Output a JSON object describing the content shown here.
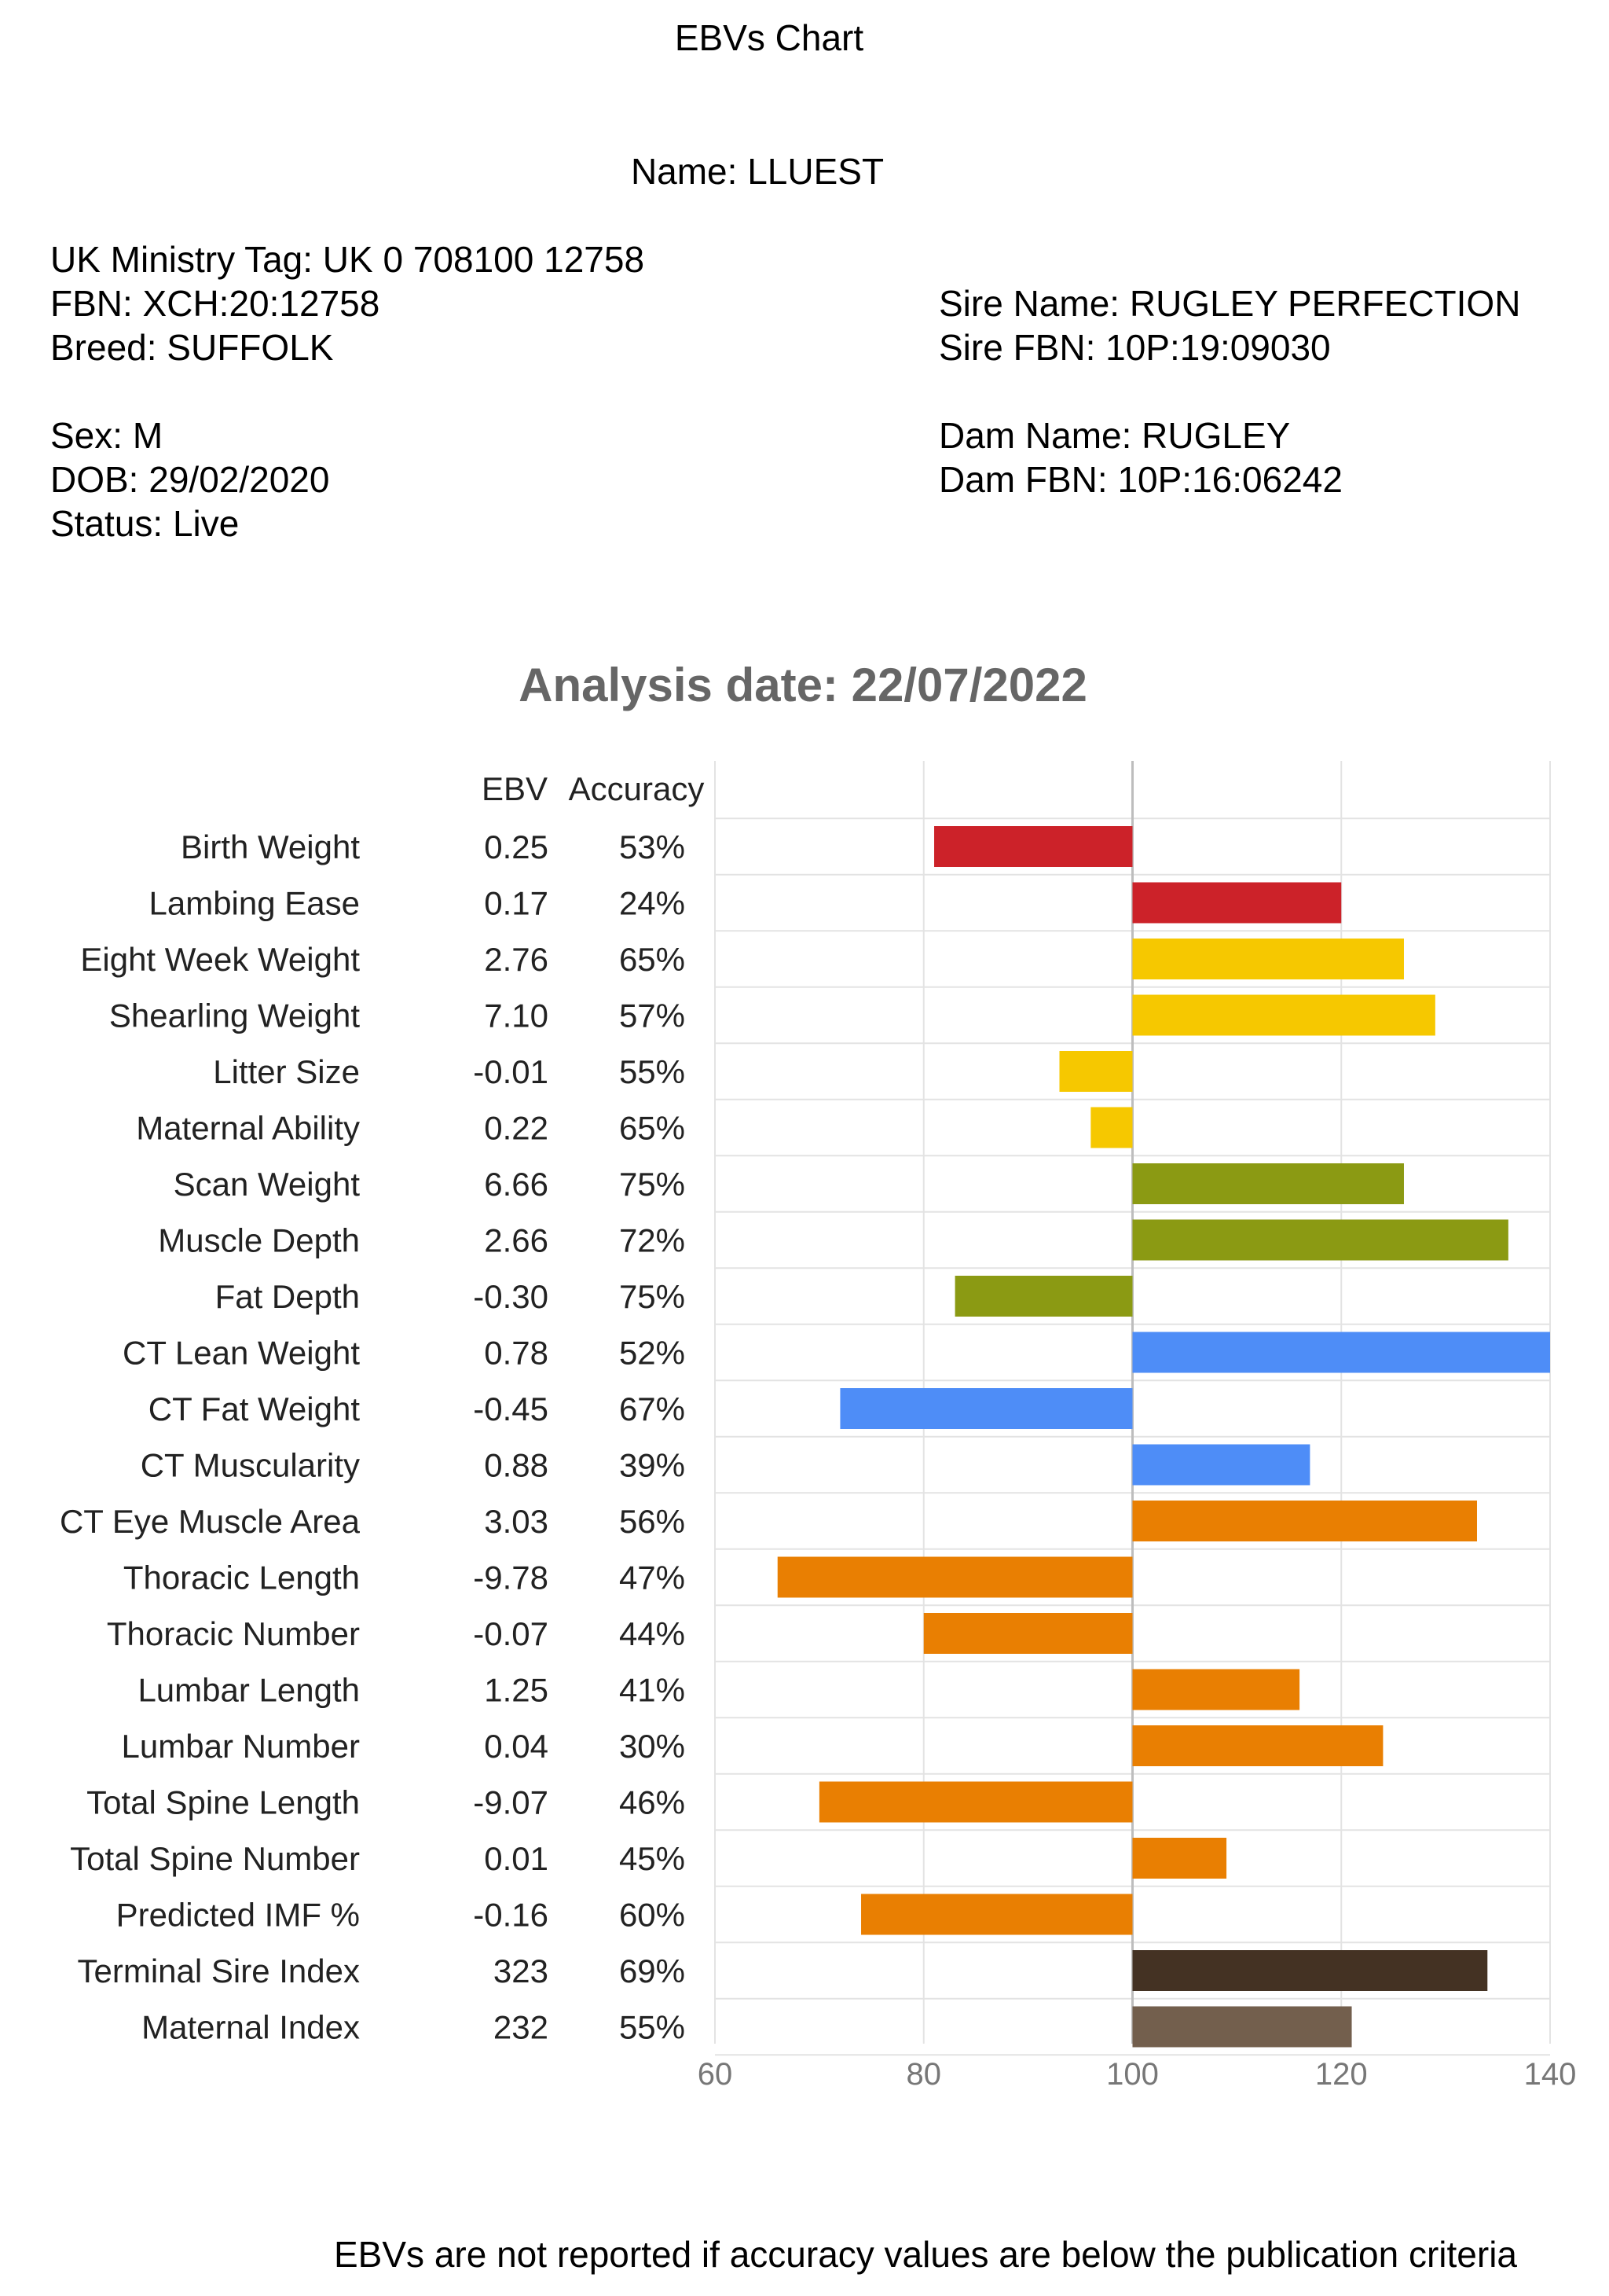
{
  "header": {
    "doc_title": "EBVs Chart",
    "name": "Name: LLUEST",
    "ministry_tag": "UK Ministry Tag: UK 0 708100 12758",
    "fbn": "FBN: XCH:20:12758",
    "breed": "Breed: SUFFOLK",
    "sex": "Sex: M",
    "dob": "DOB: 29/02/2020",
    "status": "Status: Live",
    "sire_name": "Sire Name: RUGLEY PERFECTION",
    "sire_fbn": "Sire FBN: 10P:19:09030",
    "dam_name": "Dam Name: RUGLEY",
    "dam_fbn": "Dam FBN: 10P:16:06242"
  },
  "footer": {
    "note": "EBVs are not reported if accuracy values are below the publication criteria"
  },
  "chart_data": {
    "type": "bar",
    "orientation": "horizontal",
    "title": "Analysis date: 22/07/2022",
    "column_headers": {
      "ebv": "EBV",
      "accuracy": "Accuracy"
    },
    "xlim": [
      60,
      140
    ],
    "x_ticks": [
      60,
      80,
      100,
      120,
      140
    ],
    "baseline": 100,
    "grid": true,
    "colors": {
      "red": "#cc2229",
      "yellow": "#f6c800",
      "olive": "#8b9a13",
      "blue": "#4e8df7",
      "orange": "#e97f02",
      "dark_brown": "#443223",
      "brown": "#735f4d"
    },
    "rows": [
      {
        "trait": "Birth Weight",
        "ebv": "0.25",
        "accuracy": "53%",
        "value": 81,
        "color": "#cc2229"
      },
      {
        "trait": "Lambing Ease",
        "ebv": "0.17",
        "accuracy": "24%",
        "value": 120,
        "color": "#cc2229"
      },
      {
        "trait": "Eight Week Weight",
        "ebv": "2.76",
        "accuracy": "65%",
        "value": 126,
        "color": "#f6c800"
      },
      {
        "trait": "Shearling Weight",
        "ebv": "7.10",
        "accuracy": "57%",
        "value": 129,
        "color": "#f6c800"
      },
      {
        "trait": "Litter Size",
        "ebv": "-0.01",
        "accuracy": "55%",
        "value": 93,
        "color": "#f6c800"
      },
      {
        "trait": "Maternal Ability",
        "ebv": "0.22",
        "accuracy": "65%",
        "value": 96,
        "color": "#f6c800"
      },
      {
        "trait": "Scan Weight",
        "ebv": "6.66",
        "accuracy": "75%",
        "value": 126,
        "color": "#8b9a13"
      },
      {
        "trait": "Muscle Depth",
        "ebv": "2.66",
        "accuracy": "72%",
        "value": 136,
        "color": "#8b9a13"
      },
      {
        "trait": "Fat Depth",
        "ebv": "-0.30",
        "accuracy": "75%",
        "value": 83,
        "color": "#8b9a13"
      },
      {
        "trait": "CT Lean Weight",
        "ebv": "0.78",
        "accuracy": "52%",
        "value": 140,
        "color": "#4e8df7"
      },
      {
        "trait": "CT Fat Weight",
        "ebv": "-0.45",
        "accuracy": "67%",
        "value": 72,
        "color": "#4e8df7"
      },
      {
        "trait": "CT Muscularity",
        "ebv": "0.88",
        "accuracy": "39%",
        "value": 117,
        "color": "#4e8df7"
      },
      {
        "trait": "CT Eye Muscle Area",
        "ebv": "3.03",
        "accuracy": "56%",
        "value": 133,
        "color": "#e97f02"
      },
      {
        "trait": "Thoracic Length",
        "ebv": "-9.78",
        "accuracy": "47%",
        "value": 66,
        "color": "#e97f02"
      },
      {
        "trait": "Thoracic Number",
        "ebv": "-0.07",
        "accuracy": "44%",
        "value": 80,
        "color": "#e97f02"
      },
      {
        "trait": "Lumbar Length",
        "ebv": "1.25",
        "accuracy": "41%",
        "value": 116,
        "color": "#e97f02"
      },
      {
        "trait": "Lumbar Number",
        "ebv": "0.04",
        "accuracy": "30%",
        "value": 124,
        "color": "#e97f02"
      },
      {
        "trait": "Total Spine Length",
        "ebv": "-9.07",
        "accuracy": "46%",
        "value": 70,
        "color": "#e97f02"
      },
      {
        "trait": "Total Spine Number",
        "ebv": "0.01",
        "accuracy": "45%",
        "value": 109,
        "color": "#e97f02"
      },
      {
        "trait": "Predicted IMF %",
        "ebv": "-0.16",
        "accuracy": "60%",
        "value": 74,
        "color": "#e97f02"
      },
      {
        "trait": "Terminal Sire Index",
        "ebv": "323",
        "accuracy": "69%",
        "value": 134,
        "color": "#443223"
      },
      {
        "trait": "Maternal Index",
        "ebv": "232",
        "accuracy": "55%",
        "value": 121,
        "color": "#735f4d"
      }
    ]
  }
}
